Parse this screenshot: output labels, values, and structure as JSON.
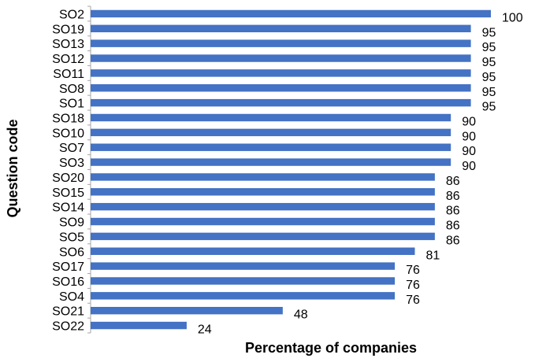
{
  "chart_data": {
    "type": "bar",
    "orientation": "horizontal",
    "title": "",
    "xlabel": "Percentage of companies",
    "ylabel": "Question code",
    "categories": [
      "SO2",
      "SO19",
      "SO13",
      "SO12",
      "SO11",
      "SO8",
      "SO1",
      "SO18",
      "SO10",
      "SO7",
      "SO3",
      "SO20",
      "SO15",
      "SO14",
      "SO9",
      "SO5",
      "SO6",
      "SO17",
      "SO16",
      "SO4",
      "SO21",
      "SO22"
    ],
    "values": [
      100,
      95,
      95,
      95,
      95,
      95,
      95,
      90,
      90,
      90,
      90,
      86,
      86,
      86,
      86,
      86,
      81,
      76,
      76,
      76,
      48,
      24
    ],
    "xlim": [
      0,
      100
    ],
    "grid": false,
    "legend": "none",
    "bar_color": "#4472C4",
    "axis_color": "#A6A6A6"
  }
}
